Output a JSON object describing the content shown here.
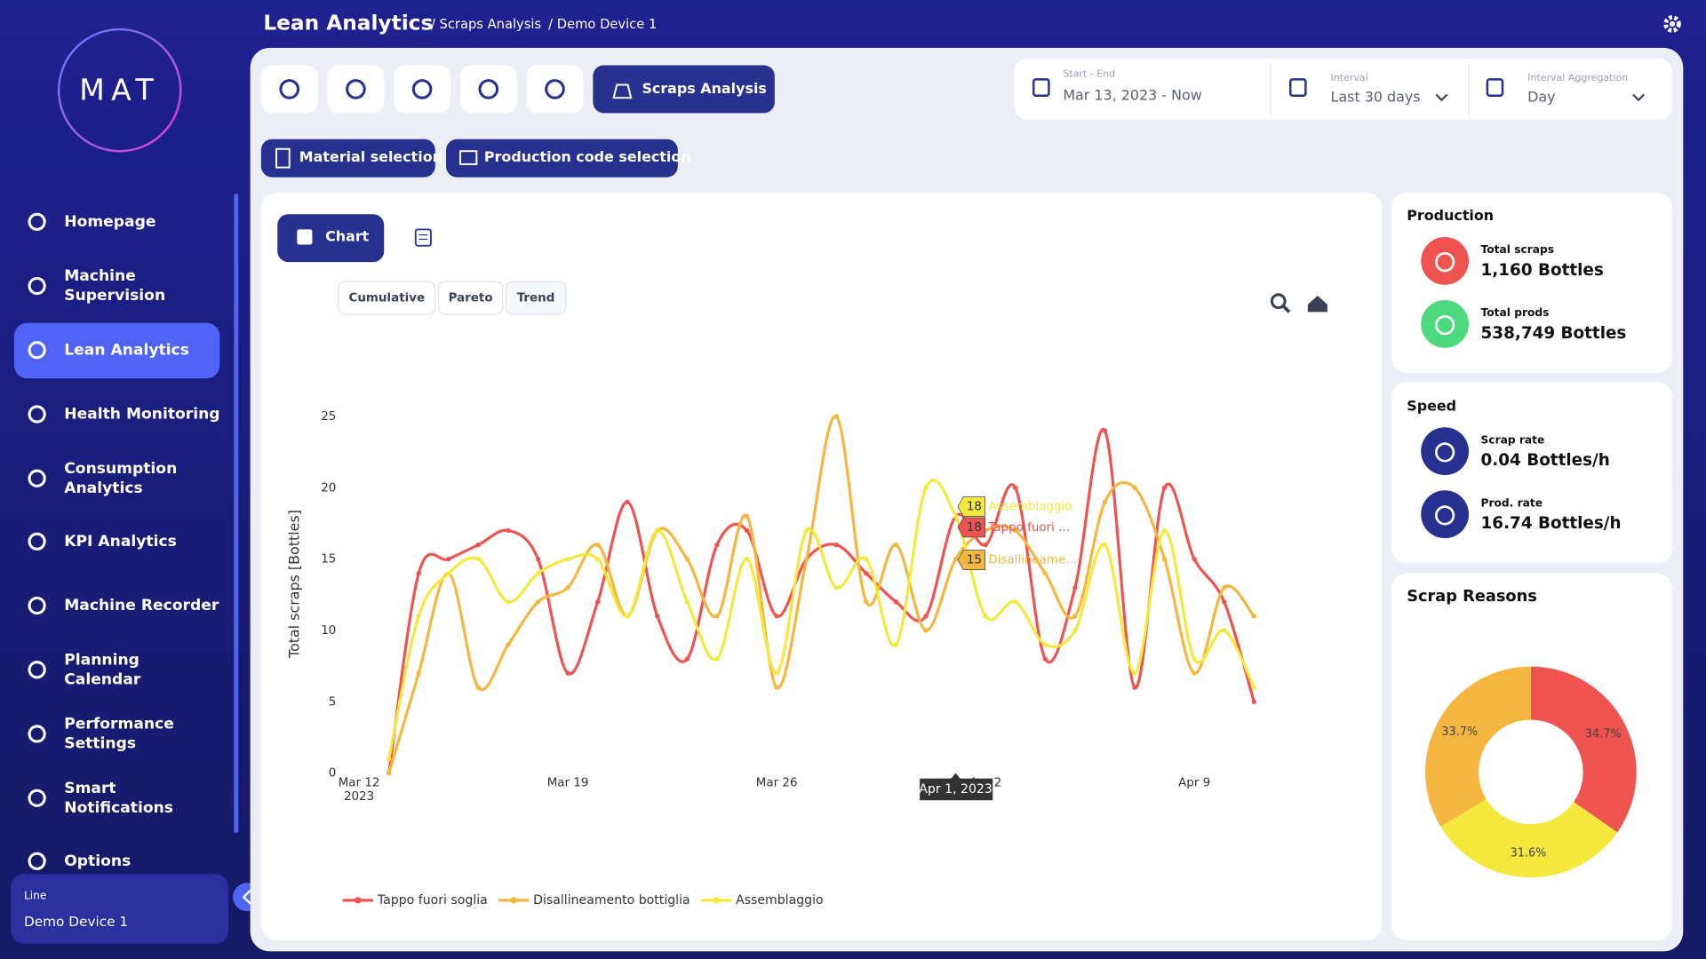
{
  "logo": "MAT",
  "header": {
    "title": "Lean Analytics",
    "breadcrumbs": [
      "/ Scraps Analysis",
      "/ Demo Device 1"
    ]
  },
  "sidebar": {
    "items": [
      [
        "Homepage"
      ],
      [
        "Machine",
        "Supervision"
      ],
      [
        "Lean Analytics"
      ],
      [
        "Health Monitoring"
      ],
      [
        "Consumption",
        "Analytics"
      ],
      [
        "KPI Analytics"
      ],
      [
        "Machine Recorder"
      ],
      [
        "Planning",
        "Calendar"
      ],
      [
        "Performance",
        "Settings"
      ],
      [
        "Smart",
        "Notifications"
      ],
      [
        "Options"
      ]
    ],
    "active": 2
  },
  "footer": {
    "label": "Line",
    "value": "Demo Device 1"
  },
  "toolbar": {
    "active_tab": "Scraps Analysis",
    "selections": [
      "Material selection",
      "Production code selection"
    ]
  },
  "filters": [
    {
      "label": "Start - End",
      "value": "Mar 13, 2023 - Now"
    },
    {
      "label": "Interval",
      "value": "Last 30 days"
    },
    {
      "label": "Interval Aggregation",
      "value": "Day"
    }
  ],
  "chart_view": {
    "button": "Chart",
    "modes": [
      "Cumulative",
      "Pareto",
      "Trend"
    ]
  },
  "production": {
    "title": "Production",
    "items": [
      {
        "label": "Total scraps",
        "value": "1,160 Bottles"
      },
      {
        "label": "Total prods",
        "value": "538,749 Bottles"
      }
    ]
  },
  "speed": {
    "title": "Speed",
    "items": [
      {
        "label": "Scrap rate",
        "value": "0.04 Bottles/h"
      },
      {
        "label": "Prod. rate",
        "value": "16.74 Bottles/h"
      }
    ]
  },
  "chart_data": [
    {
      "type": "line",
      "y_label": "Total scraps [Bottles]",
      "x": [
        "2023-03-13",
        "2023-03-14",
        "2023-03-15",
        "2023-03-16",
        "2023-03-17",
        "2023-03-18",
        "2023-03-19",
        "2023-03-20",
        "2023-03-21",
        "2023-03-22",
        "2023-03-23",
        "2023-03-24",
        "2023-03-25",
        "2023-03-26",
        "2023-03-27",
        "2023-03-28",
        "2023-03-29",
        "2023-03-30",
        "2023-03-31",
        "2023-04-01",
        "2023-04-02",
        "2023-04-03",
        "2023-04-04",
        "2023-04-05",
        "2023-04-06",
        "2023-04-07",
        "2023-04-08",
        "2023-04-09",
        "2023-04-10",
        "2023-04-11"
      ],
      "xlim": [
        "2023-03-12",
        "2023-04-12"
      ],
      "xticks": [
        {
          "value": "2023-03-12",
          "label": "Mar 12\n2023"
        },
        {
          "value": "2023-03-19",
          "label": "Mar 19"
        },
        {
          "value": "2023-03-26",
          "label": "Mar 26"
        },
        {
          "value": "2023-04-02",
          "label": "Apr 2"
        },
        {
          "value": "2023-04-09",
          "label": "Apr 9"
        }
      ],
      "ylim": [
        0,
        25
      ],
      "yticks": [
        0,
        5,
        10,
        15,
        20,
        25
      ],
      "grid": false,
      "legend": "bottom",
      "series": [
        {
          "name": "Tappo fuori soglia",
          "color": "#ef5350",
          "values": [
            0,
            14,
            15,
            16,
            17,
            15,
            7,
            12,
            19,
            11,
            8,
            16,
            17,
            11,
            15,
            16,
            14,
            12,
            11,
            18,
            16,
            20,
            8,
            13,
            24,
            6,
            20,
            15,
            12,
            5
          ]
        },
        {
          "name": "Disallineamento bottiglia",
          "color": "#f4b63f",
          "values": [
            0,
            7,
            14,
            6,
            9,
            12,
            13,
            16,
            11,
            17,
            15,
            11,
            18,
            6,
            15,
            25,
            12,
            16,
            10,
            15,
            17,
            17,
            14,
            11,
            19,
            20,
            15,
            7,
            13,
            11
          ]
        },
        {
          "name": "Assemblaggio",
          "color": "#f5e83c",
          "values": [
            1,
            11,
            14,
            15,
            12,
            14,
            15,
            15,
            11,
            17,
            12,
            8,
            15,
            7,
            17,
            13,
            15,
            9,
            20,
            18,
            11,
            12,
            9,
            10,
            16,
            7,
            17,
            8,
            10,
            6
          ]
        }
      ]
    },
    {
      "type": "pie",
      "title": "Scrap Reasons",
      "categories": [
        "Tappo fuori soglia",
        "Assemblaggio",
        "Disallineamento bottiglia"
      ],
      "values": [
        34.7,
        31.6,
        33.7
      ],
      "value_labels": [
        "34.7%",
        "31.6%",
        "33.7%"
      ],
      "colors": [
        "#ef5350",
        "#f5e83c",
        "#f4b63f"
      ]
    }
  ],
  "hover": {
    "date": "Apr 1, 2023",
    "items": [
      {
        "value": 18,
        "name": "Assemblaggio",
        "color": "#f5e83c"
      },
      {
        "value": 18,
        "name": "Tappo fuori ...",
        "color": "#ef5350"
      },
      {
        "value": 15,
        "name": "Disallineame...",
        "color": "#f4b63f"
      }
    ]
  }
}
